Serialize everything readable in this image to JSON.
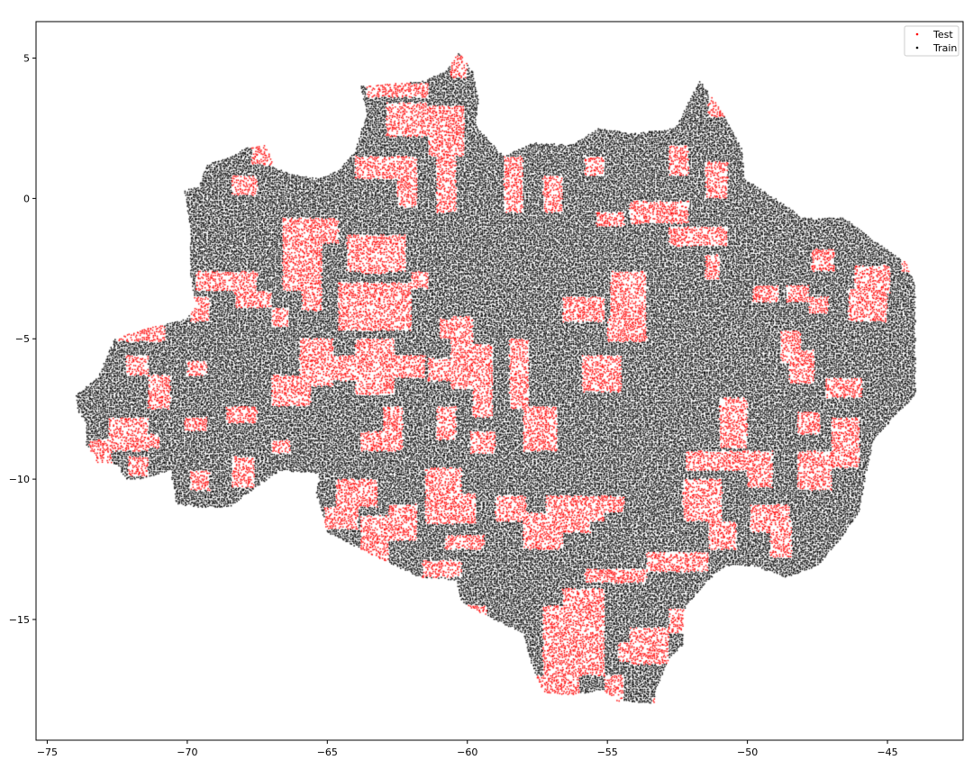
{
  "chart_data": {
    "type": "scatter",
    "title": "",
    "xlabel": "",
    "ylabel": "",
    "xlim": [
      -75.4,
      -42.3
    ],
    "ylim": [
      -19.3,
      6.3
    ],
    "xticks": [
      -75,
      -70,
      -65,
      -60,
      -55,
      -50,
      -45
    ],
    "yticks": [
      5,
      0,
      -5,
      -10,
      -15
    ],
    "xtick_labels": [
      "−75",
      "−70",
      "−65",
      "−60",
      "−55",
      "−50",
      "−45"
    ],
    "ytick_labels": [
      "5",
      "0",
      "−5",
      "−10",
      "−15"
    ],
    "grid": false,
    "legend_position": "top-right",
    "grid_cell_degrees": 0.75,
    "series": [
      {
        "name": "Test",
        "color": "#ff0000",
        "marker_size": 1,
        "note_blocks": "blocks of points, given as [lon_min, lon_max, lat_min, lat_max]",
        "blocks": [
          [
            -63.6,
            -61.4,
            3.6,
            4.1
          ],
          [
            -62.9,
            -61.4,
            2.2,
            3.4
          ],
          [
            -61.4,
            -60.1,
            1.5,
            3.3
          ],
          [
            -60.6,
            -60.0,
            4.3,
            5.1
          ],
          [
            -68.4,
            -67.5,
            0.1,
            0.8
          ],
          [
            -67.7,
            -66.8,
            1.2,
            2.0
          ],
          [
            -64.0,
            -62.5,
            0.7,
            1.5
          ],
          [
            -62.5,
            -61.8,
            -0.3,
            1.5
          ],
          [
            -61.1,
            -60.4,
            -0.5,
            1.5
          ],
          [
            -58.7,
            -58.0,
            -0.5,
            1.5
          ],
          [
            -57.3,
            -56.6,
            -0.5,
            0.8
          ],
          [
            -55.8,
            -55.1,
            0.8,
            1.5
          ],
          [
            -52.8,
            -52.1,
            0.8,
            1.9
          ],
          [
            -51.5,
            -50.7,
            0.0,
            1.3
          ],
          [
            -51.4,
            -50.7,
            2.9,
            4.3
          ],
          [
            -66.6,
            -64.6,
            -1.6,
            -0.7
          ],
          [
            -66.6,
            -65.2,
            -3.3,
            -1.6
          ],
          [
            -65.9,
            -65.2,
            -4.0,
            -3.3
          ],
          [
            -69.7,
            -67.5,
            -3.3,
            -2.6
          ],
          [
            -68.3,
            -67.0,
            -3.9,
            -3.3
          ],
          [
            -67.0,
            -66.4,
            -4.6,
            -3.9
          ],
          [
            -69.9,
            -69.2,
            -4.4,
            -3.5
          ],
          [
            -64.3,
            -62.2,
            -2.6,
            -1.3
          ],
          [
            -63.8,
            -62.9,
            -2.7,
            -2.0
          ],
          [
            -64.6,
            -62.0,
            -4.7,
            -3.0
          ],
          [
            -62.0,
            -61.4,
            -3.2,
            -2.6
          ],
          [
            -61.0,
            -60.0,
            -5.0,
            -4.3
          ],
          [
            -66.0,
            -64.8,
            -6.7,
            -5.0
          ],
          [
            -65.0,
            -63.2,
            -6.5,
            -5.6
          ],
          [
            -64.0,
            -62.6,
            -7.0,
            -5.0
          ],
          [
            -62.9,
            -61.5,
            -6.4,
            -5.6
          ],
          [
            -61.4,
            -59.8,
            -6.5,
            -5.7
          ],
          [
            -59.8,
            -59.1,
            -7.8,
            -5.2
          ],
          [
            -60.6,
            -59.8,
            -6.8,
            -4.2
          ],
          [
            -58.5,
            -57.8,
            -7.5,
            -5.0
          ],
          [
            -58.0,
            -56.8,
            -9.0,
            -7.4
          ],
          [
            -55.9,
            -54.5,
            -6.9,
            -5.6
          ],
          [
            -55.0,
            -53.6,
            -5.1,
            -4.3
          ],
          [
            -56.6,
            -55.1,
            -4.4,
            -3.5
          ],
          [
            -54.9,
            -53.6,
            -3.3,
            -2.6
          ],
          [
            -51.5,
            -51.0,
            -2.9,
            -2.0
          ],
          [
            -52.8,
            -50.7,
            -1.7,
            -1.0
          ],
          [
            -54.2,
            -52.1,
            -0.9,
            -0.1
          ],
          [
            -55.4,
            -54.4,
            -1.0,
            -0.5
          ],
          [
            -54.9,
            -53.6,
            -4.4,
            -3.3
          ],
          [
            -49.8,
            -48.9,
            -3.7,
            -3.1
          ],
          [
            -48.6,
            -47.8,
            -3.7,
            -3.1
          ],
          [
            -47.8,
            -47.1,
            -4.1,
            -3.5
          ],
          [
            -46.4,
            -45.0,
            -4.4,
            -3.2
          ],
          [
            -46.2,
            -44.9,
            -3.4,
            -2.4
          ],
          [
            -44.5,
            -44.0,
            -2.6,
            -1.7
          ],
          [
            -47.7,
            -46.9,
            -2.6,
            -1.8
          ],
          [
            -48.8,
            -48.1,
            -5.9,
            -4.7
          ],
          [
            -48.5,
            -47.6,
            -6.6,
            -5.4
          ],
          [
            -47.2,
            -45.9,
            -7.1,
            -6.4
          ],
          [
            -48.2,
            -47.4,
            -8.4,
            -7.6
          ],
          [
            -47.0,
            -46.0,
            -9.6,
            -7.8
          ],
          [
            -48.2,
            -47.0,
            -10.4,
            -9.0
          ],
          [
            -52.2,
            -50.0,
            -9.7,
            -9.0
          ],
          [
            -51.0,
            -50.0,
            -8.9,
            -7.1
          ],
          [
            -52.3,
            -50.9,
            -11.5,
            -10.0
          ],
          [
            -50.0,
            -49.1,
            -10.3,
            -9.0
          ],
          [
            -49.9,
            -48.5,
            -11.9,
            -10.9
          ],
          [
            -49.2,
            -48.4,
            -12.8,
            -11.5
          ],
          [
            -51.4,
            -50.4,
            -12.5,
            -11.5
          ],
          [
            -53.6,
            -51.4,
            -13.3,
            -12.6
          ],
          [
            -55.8,
            -53.6,
            -13.7,
            -13.2
          ],
          [
            -57.2,
            -54.4,
            -11.2,
            -10.6
          ],
          [
            -57.6,
            -55.6,
            -11.9,
            -11.2
          ],
          [
            -55.9,
            -55.1,
            -11.5,
            -10.9
          ],
          [
            -58.0,
            -56.6,
            -12.5,
            -11.2
          ],
          [
            -59.0,
            -57.9,
            -11.5,
            -10.6
          ],
          [
            -60.8,
            -59.4,
            -12.5,
            -12.0
          ],
          [
            -61.5,
            -59.7,
            -11.6,
            -10.5
          ],
          [
            -61.5,
            -60.2,
            -10.6,
            -9.6
          ],
          [
            -61.1,
            -60.4,
            -8.6,
            -7.4
          ],
          [
            -59.9,
            -59.0,
            -9.1,
            -8.3
          ],
          [
            -63.0,
            -62.3,
            -8.6,
            -7.4
          ],
          [
            -63.8,
            -62.3,
            -9.0,
            -8.3
          ],
          [
            -64.7,
            -63.2,
            -11.0,
            -10.0
          ],
          [
            -65.1,
            -63.9,
            -11.8,
            -11.0
          ],
          [
            -63.8,
            -62.8,
            -13.0,
            -11.3
          ],
          [
            -62.8,
            -61.8,
            -12.2,
            -10.9
          ],
          [
            -61.6,
            -60.2,
            -13.5,
            -12.9
          ],
          [
            -60.3,
            -59.3,
            -17.0,
            -14.5
          ],
          [
            -57.3,
            -55.1,
            -17.0,
            -14.5
          ],
          [
            -56.6,
            -55.1,
            -14.8,
            -13.9
          ],
          [
            -54.2,
            -52.8,
            -16.6,
            -15.3
          ],
          [
            -55.1,
            -54.4,
            -18.1,
            -17.0
          ],
          [
            -53.4,
            -52.9,
            -18.1,
            -17.8
          ],
          [
            -52.8,
            -52.2,
            -15.5,
            -14.6
          ],
          [
            -67.0,
            -66.3,
            -9.1,
            -8.6
          ],
          [
            -68.4,
            -67.6,
            -10.3,
            -9.2
          ],
          [
            -67.0,
            -65.6,
            -7.4,
            -6.3
          ],
          [
            -68.6,
            -67.5,
            -8.0,
            -7.4
          ],
          [
            -70.1,
            -69.3,
            -8.3,
            -7.8
          ],
          [
            -69.9,
            -69.2,
            -10.4,
            -9.7
          ],
          [
            -70.0,
            -69.3,
            -6.3,
            -5.8
          ],
          [
            -71.4,
            -70.6,
            -7.5,
            -6.3
          ],
          [
            -72.2,
            -71.4,
            -6.3,
            -5.6
          ],
          [
            -72.5,
            -70.8,
            -5.1,
            -4.4
          ],
          [
            -72.8,
            -71.4,
            -9.0,
            -7.8
          ],
          [
            -73.5,
            -72.7,
            -9.6,
            -8.6
          ],
          [
            -72.2,
            -71.0,
            -8.9,
            -8.4
          ],
          [
            -72.1,
            -71.4,
            -9.9,
            -9.2
          ],
          [
            -57.5,
            -56.0,
            -18.0,
            -17.0
          ],
          [
            -54.6,
            -53.1,
            -16.5,
            -15.8
          ]
        ]
      },
      {
        "name": "Train",
        "color": "#000000",
        "marker_size": 1
      }
    ],
    "region_outline": {
      "note": "Outline of the area covered by the points, as [lon, lat]",
      "points": [
        [
          -74.0,
          -7.0
        ],
        [
          -73.2,
          -6.4
        ],
        [
          -72.6,
          -5.0
        ],
        [
          -71.3,
          -4.6
        ],
        [
          -70.0,
          -4.3
        ],
        [
          -69.7,
          -3.8
        ],
        [
          -69.9,
          -2.6
        ],
        [
          -69.9,
          -1.0
        ],
        [
          -70.1,
          0.3
        ],
        [
          -69.6,
          0.4
        ],
        [
          -69.3,
          1.2
        ],
        [
          -68.4,
          1.5
        ],
        [
          -67.9,
          1.8
        ],
        [
          -67.2,
          1.9
        ],
        [
          -66.9,
          1.1
        ],
        [
          -66.0,
          0.8
        ],
        [
          -65.3,
          0.7
        ],
        [
          -64.6,
          1.0
        ],
        [
          -64.0,
          1.7
        ],
        [
          -63.6,
          3.0
        ],
        [
          -63.8,
          4.0
        ],
        [
          -62.5,
          4.1
        ],
        [
          -61.5,
          4.2
        ],
        [
          -60.7,
          4.6
        ],
        [
          -60.3,
          5.2
        ],
        [
          -59.8,
          4.5
        ],
        [
          -59.6,
          3.5
        ],
        [
          -59.7,
          2.6
        ],
        [
          -58.7,
          1.5
        ],
        [
          -57.6,
          2.0
        ],
        [
          -56.3,
          1.9
        ],
        [
          -55.3,
          2.5
        ],
        [
          -54.1,
          2.3
        ],
        [
          -52.6,
          2.5
        ],
        [
          -51.7,
          4.2
        ],
        [
          -51.1,
          3.4
        ],
        [
          -50.2,
          1.8
        ],
        [
          -50.1,
          0.7
        ],
        [
          -49.0,
          0.0
        ],
        [
          -48.0,
          -0.7
        ],
        [
          -46.5,
          -0.7
        ],
        [
          -45.5,
          -1.5
        ],
        [
          -44.3,
          -2.3
        ],
        [
          -44.0,
          -3.2
        ],
        [
          -44.0,
          -7.0
        ],
        [
          -45.5,
          -8.6
        ],
        [
          -45.8,
          -10.0
        ],
        [
          -46.0,
          -11.2
        ],
        [
          -46.8,
          -12.3
        ],
        [
          -47.5,
          -13.1
        ],
        [
          -48.6,
          -13.5
        ],
        [
          -49.8,
          -13.1
        ],
        [
          -50.8,
          -13.1
        ],
        [
          -51.4,
          -13.6
        ],
        [
          -52.3,
          -14.7
        ],
        [
          -52.3,
          -15.9
        ],
        [
          -52.8,
          -16.4
        ],
        [
          -53.3,
          -17.6
        ],
        [
          -53.3,
          -18.0
        ],
        [
          -54.7,
          -17.9
        ],
        [
          -55.2,
          -17.5
        ],
        [
          -56.2,
          -17.7
        ],
        [
          -57.3,
          -17.6
        ],
        [
          -57.7,
          -16.6
        ],
        [
          -58.0,
          -15.5
        ],
        [
          -59.3,
          -14.9
        ],
        [
          -60.2,
          -14.4
        ],
        [
          -60.4,
          -13.6
        ],
        [
          -61.7,
          -13.5
        ],
        [
          -63.0,
          -12.9
        ],
        [
          -64.0,
          -12.4
        ],
        [
          -65.0,
          -11.9
        ],
        [
          -65.4,
          -10.5
        ],
        [
          -65.3,
          -9.8
        ],
        [
          -66.7,
          -9.7
        ],
        [
          -67.7,
          -10.4
        ],
        [
          -68.5,
          -11.0
        ],
        [
          -69.6,
          -11.0
        ],
        [
          -70.4,
          -10.9
        ],
        [
          -70.6,
          -9.7
        ],
        [
          -71.7,
          -10.0
        ],
        [
          -72.2,
          -10.0
        ],
        [
          -72.5,
          -9.5
        ],
        [
          -73.2,
          -9.4
        ],
        [
          -73.6,
          -8.8
        ],
        [
          -73.6,
          -8.0
        ],
        [
          -73.9,
          -7.6
        ]
      ]
    }
  }
}
